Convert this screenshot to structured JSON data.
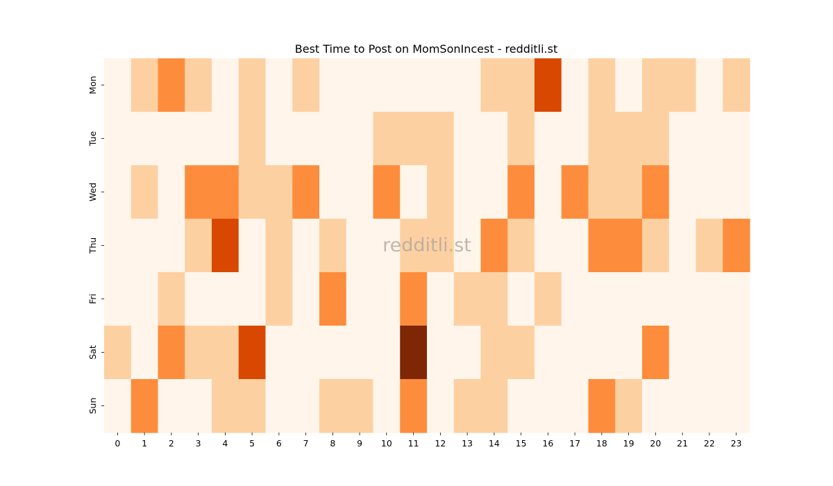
{
  "chart_data": {
    "type": "heatmap",
    "title": "Best Time to Post on MomSonIncest - redditli.st",
    "watermark": "redditli.st",
    "xlabel": "",
    "ylabel": "",
    "x_categories": [
      "0",
      "1",
      "2",
      "3",
      "4",
      "5",
      "6",
      "7",
      "8",
      "9",
      "10",
      "11",
      "12",
      "13",
      "14",
      "15",
      "16",
      "17",
      "18",
      "19",
      "20",
      "21",
      "22",
      "23"
    ],
    "y_categories": [
      "Mon",
      "Tue",
      "Wed",
      "Thu",
      "Fri",
      "Sat",
      "Sun"
    ],
    "values": [
      [
        0,
        1,
        2,
        1,
        0,
        1,
        0,
        1,
        0,
        0,
        0,
        0,
        0,
        0,
        1,
        1,
        3,
        0,
        1,
        0,
        1,
        1,
        0,
        1
      ],
      [
        0,
        0,
        0,
        0,
        0,
        1,
        0,
        0,
        0,
        0,
        1,
        1,
        1,
        0,
        0,
        1,
        0,
        0,
        1,
        1,
        1,
        0,
        0,
        0
      ],
      [
        0,
        1,
        0,
        2,
        2,
        1,
        1,
        2,
        0,
        0,
        2,
        0,
        1,
        0,
        0,
        2,
        0,
        2,
        1,
        1,
        2,
        0,
        0,
        0
      ],
      [
        0,
        0,
        0,
        1,
        3,
        0,
        1,
        0,
        1,
        0,
        0,
        1,
        1,
        0,
        2,
        1,
        0,
        0,
        2,
        2,
        1,
        0,
        1,
        2
      ],
      [
        0,
        0,
        1,
        0,
        0,
        0,
        1,
        0,
        2,
        0,
        0,
        2,
        0,
        1,
        1,
        0,
        1,
        0,
        0,
        0,
        0,
        0,
        0,
        0
      ],
      [
        1,
        0,
        2,
        1,
        1,
        3,
        0,
        0,
        0,
        0,
        0,
        4,
        0,
        0,
        1,
        1,
        0,
        0,
        0,
        0,
        2,
        0,
        0,
        0
      ],
      [
        0,
        2,
        0,
        0,
        1,
        1,
        0,
        0,
        1,
        1,
        0,
        2,
        0,
        1,
        1,
        0,
        0,
        0,
        2,
        1,
        0,
        0,
        0,
        0
      ]
    ],
    "color_scale": [
      "#fff5eb",
      "#fdd0a2",
      "#fd8d3c",
      "#d94801",
      "#7f2704"
    ],
    "grid": false,
    "legend": "none"
  }
}
